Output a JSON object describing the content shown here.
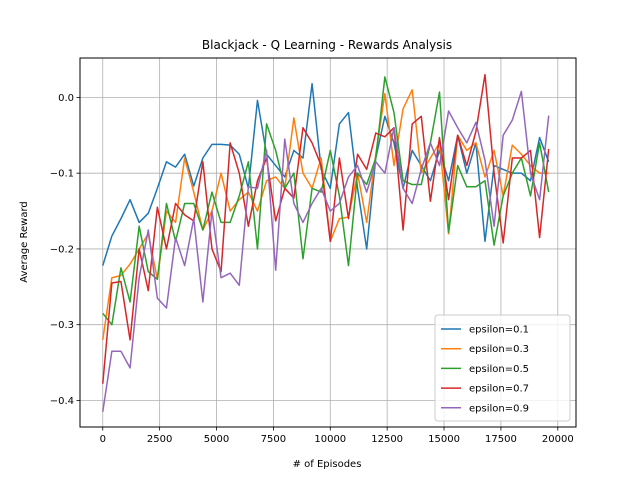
{
  "chart_data": {
    "type": "line",
    "title": "Blackjack - Q Learning - Rewards Analysis",
    "xlabel": "# of Episodes",
    "ylabel": "Average Reward",
    "xlim": [
      -1000,
      20800
    ],
    "ylim": [
      -0.435,
      0.052
    ],
    "xticks": [
      0,
      2500,
      5000,
      7500,
      10000,
      12500,
      15000,
      17500,
      20000
    ],
    "yticks": [
      0.0,
      -0.1,
      -0.2,
      -0.3,
      -0.4
    ],
    "ytick_labels": [
      "0.0",
      "−0.1",
      "−0.2",
      "−0.3",
      "−0.4"
    ],
    "grid": true,
    "legend_position": "lower-right",
    "x": [
      0,
      400,
      800,
      1200,
      1600,
      2000,
      2400,
      2800,
      3200,
      3600,
      4000,
      4400,
      4800,
      5200,
      5600,
      6000,
      6400,
      6800,
      7200,
      7600,
      8000,
      8400,
      8800,
      9200,
      9600,
      10000,
      10400,
      10800,
      11200,
      11600,
      12000,
      12400,
      12800,
      13200,
      13600,
      14000,
      14400,
      14800,
      15200,
      15600,
      16000,
      16400,
      16800,
      17200,
      17600,
      18000,
      18400,
      18800,
      19200,
      19600
    ],
    "series": [
      {
        "name": "epsilon=0.1",
        "color": "#1f77b4",
        "values": [
          -0.222,
          -0.183,
          -0.16,
          -0.135,
          -0.165,
          -0.153,
          -0.12,
          -0.085,
          -0.092,
          -0.075,
          -0.117,
          -0.08,
          -0.062,
          -0.062,
          -0.063,
          -0.075,
          -0.12,
          -0.004,
          -0.075,
          -0.09,
          -0.105,
          -0.07,
          -0.08,
          0.018,
          -0.095,
          -0.12,
          -0.035,
          -0.02,
          -0.12,
          -0.2,
          -0.08,
          -0.025,
          -0.06,
          -0.12,
          -0.07,
          -0.09,
          -0.11,
          -0.07,
          -0.11,
          -0.05,
          -0.1,
          -0.06,
          -0.19,
          -0.09,
          -0.095,
          -0.1,
          -0.1,
          -0.11,
          -0.053,
          -0.085
        ]
      },
      {
        "name": "epsilon=0.3",
        "color": "#ff7f0e",
        "values": [
          -0.32,
          -0.238,
          -0.235,
          -0.22,
          -0.2,
          -0.18,
          -0.24,
          -0.15,
          -0.165,
          -0.08,
          -0.125,
          -0.175,
          -0.15,
          -0.1,
          -0.15,
          -0.135,
          -0.125,
          -0.15,
          -0.11,
          -0.105,
          -0.12,
          -0.027,
          -0.1,
          -0.12,
          -0.08,
          -0.19,
          -0.16,
          -0.158,
          -0.1,
          -0.165,
          -0.075,
          0.005,
          -0.09,
          -0.015,
          0.01,
          -0.1,
          -0.08,
          -0.06,
          -0.18,
          -0.05,
          -0.07,
          -0.06,
          -0.105,
          -0.07,
          -0.13,
          -0.063,
          -0.075,
          -0.09,
          -0.1,
          -0.1
        ]
      },
      {
        "name": "epsilon=0.5",
        "color": "#2ca02c",
        "values": [
          -0.285,
          -0.3,
          -0.225,
          -0.27,
          -0.17,
          -0.23,
          -0.24,
          -0.14,
          -0.19,
          -0.14,
          -0.14,
          -0.175,
          -0.125,
          -0.165,
          -0.165,
          -0.13,
          -0.085,
          -0.2,
          -0.035,
          -0.07,
          -0.12,
          -0.1,
          -0.213,
          -0.12,
          -0.125,
          -0.07,
          -0.13,
          -0.222,
          -0.1,
          -0.115,
          -0.08,
          0.027,
          -0.02,
          -0.11,
          -0.115,
          -0.115,
          -0.06,
          0.007,
          -0.178,
          -0.09,
          -0.118,
          -0.118,
          -0.11,
          -0.195,
          -0.13,
          -0.1,
          -0.08,
          -0.13,
          -0.06,
          -0.125
        ]
      },
      {
        "name": "epsilon=0.7",
        "color": "#d62728",
        "values": [
          -0.378,
          -0.245,
          -0.243,
          -0.32,
          -0.2,
          -0.255,
          -0.145,
          -0.2,
          -0.14,
          -0.155,
          -0.163,
          -0.085,
          -0.2,
          -0.23,
          -0.06,
          -0.1,
          -0.17,
          -0.11,
          -0.08,
          -0.163,
          -0.12,
          -0.133,
          -0.04,
          -0.06,
          -0.09,
          -0.19,
          -0.08,
          -0.16,
          -0.075,
          -0.095,
          -0.047,
          -0.052,
          -0.04,
          -0.175,
          -0.035,
          -0.025,
          -0.137,
          -0.053,
          -0.135,
          -0.05,
          -0.09,
          -0.045,
          0.03,
          -0.1,
          -0.192,
          -0.08,
          -0.08,
          -0.07,
          -0.185,
          -0.068
        ]
      },
      {
        "name": "epsilon=0.9",
        "color": "#9467bd",
        "values": [
          -0.415,
          -0.335,
          -0.335,
          -0.357,
          -0.238,
          -0.175,
          -0.265,
          -0.278,
          -0.185,
          -0.222,
          -0.16,
          -0.27,
          -0.15,
          -0.238,
          -0.232,
          -0.248,
          -0.118,
          -0.12,
          -0.07,
          -0.228,
          -0.055,
          -0.14,
          -0.165,
          -0.14,
          -0.12,
          -0.15,
          -0.14,
          -0.105,
          -0.09,
          -0.125,
          -0.085,
          -0.1,
          -0.04,
          -0.12,
          -0.14,
          -0.095,
          -0.06,
          -0.09,
          -0.018,
          -0.04,
          -0.06,
          -0.033,
          -0.083,
          -0.17,
          -0.05,
          -0.03,
          0.008,
          -0.1,
          -0.135,
          -0.024
        ]
      }
    ]
  }
}
